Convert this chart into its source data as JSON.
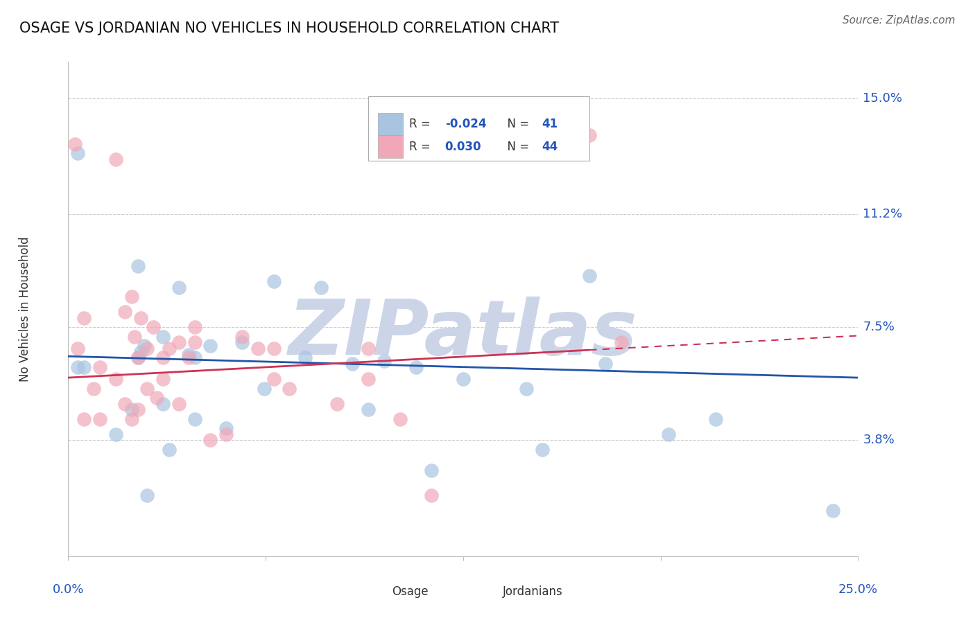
{
  "title": "OSAGE VS JORDANIAN NO VEHICLES IN HOUSEHOLD CORRELATION CHART",
  "source": "Source: ZipAtlas.com",
  "ylabel": "No Vehicles in Household",
  "ytick_labels": [
    "3.8%",
    "7.5%",
    "11.2%",
    "15.0%"
  ],
  "ytick_values": [
    3.8,
    7.5,
    11.2,
    15.0
  ],
  "xlim": [
    0.0,
    25.0
  ],
  "ylim": [
    0.0,
    16.2
  ],
  "legend_r_blue": "-0.024",
  "legend_n_blue": "41",
  "legend_r_pink": "0.030",
  "legend_n_pink": "44",
  "blue_color": "#a8c4e0",
  "pink_color": "#f0a8b8",
  "line_blue_color": "#2255aa",
  "line_pink_color": "#cc3355",
  "blue_intercept": 6.55,
  "blue_slope": -0.028,
  "pink_intercept": 5.85,
  "pink_slope": 0.055,
  "osage_x": [
    0.3,
    0.5,
    2.2,
    2.3,
    2.4,
    3.0,
    3.5,
    3.8,
    4.0,
    4.5,
    5.5,
    6.5,
    7.5,
    8.0,
    9.0,
    10.0,
    11.0,
    12.5,
    14.5,
    16.5,
    17.0,
    20.5,
    24.2
  ],
  "osage_y": [
    13.2,
    6.2,
    9.5,
    6.7,
    6.9,
    7.2,
    8.8,
    6.6,
    6.5,
    6.9,
    7.0,
    9.0,
    6.5,
    8.8,
    6.3,
    6.4,
    6.2,
    5.8,
    5.5,
    9.2,
    6.3,
    4.5,
    1.5
  ],
  "osage_x2": [
    0.3,
    1.5,
    2.0,
    2.2,
    2.5,
    3.0,
    3.2,
    4.0,
    5.0,
    6.2,
    9.5,
    11.5,
    15.0,
    19.0
  ],
  "osage_y2": [
    6.2,
    4.0,
    4.8,
    6.5,
    2.0,
    5.0,
    3.5,
    4.5,
    4.2,
    5.5,
    4.8,
    2.8,
    3.5,
    4.0
  ],
  "jordanian_x": [
    0.2,
    0.5,
    0.8,
    1.0,
    1.5,
    1.8,
    2.0,
    2.1,
    2.2,
    2.3,
    2.5,
    2.7,
    3.0,
    3.2,
    3.5,
    3.8,
    4.0,
    4.5,
    5.5,
    6.5,
    7.0,
    9.5,
    10.5,
    16.5
  ],
  "jordanian_y": [
    13.5,
    7.8,
    5.5,
    4.5,
    13.0,
    8.0,
    8.5,
    7.2,
    6.5,
    7.8,
    6.8,
    7.5,
    6.5,
    6.8,
    7.0,
    6.5,
    7.5,
    3.8,
    7.2,
    6.8,
    5.5,
    6.8,
    4.5,
    13.8
  ],
  "jordanian_x2": [
    0.3,
    0.5,
    1.0,
    1.5,
    1.8,
    2.0,
    2.2,
    2.5,
    2.8,
    3.0,
    3.5,
    4.0,
    5.0,
    6.0,
    6.5,
    8.5,
    9.5,
    11.5,
    17.5
  ],
  "jordanian_y2": [
    6.8,
    4.5,
    6.2,
    5.8,
    5.0,
    4.5,
    4.8,
    5.5,
    5.2,
    5.8,
    5.0,
    7.0,
    4.0,
    6.8,
    5.8,
    5.0,
    5.8,
    2.0,
    7.0
  ],
  "background_color": "#ffffff",
  "grid_color": "#cccccc",
  "watermark": "ZIPatlas",
  "watermark_color": "#ccd5e8"
}
